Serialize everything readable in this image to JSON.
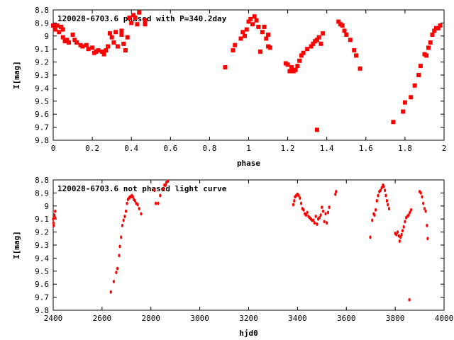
{
  "chart_data": [
    {
      "type": "scatter",
      "title": "120028-6703.6 phased with P=340.2day",
      "xlabel": "phase",
      "ylabel": "I[mag]",
      "xlim": [
        0,
        2
      ],
      "ylim": [
        8.8,
        9.8
      ],
      "y_inverted": true,
      "xticks": [
        "0",
        "0.2",
        "0.4",
        "0.6",
        "0.8",
        "1",
        "1.2",
        "1.4",
        "1.6",
        "1.8",
        "2"
      ],
      "yticks": [
        "8.8",
        "8.9",
        "9",
        "9.1",
        "9.2",
        "9.3",
        "9.4",
        "9.5",
        "9.6",
        "9.7",
        "9.8"
      ],
      "marker": "square",
      "color": "#ff0000",
      "points": [
        [
          0.0,
          8.92
        ],
        [
          0.01,
          8.95
        ],
        [
          0.02,
          8.92
        ],
        [
          0.03,
          8.97
        ],
        [
          0.04,
          8.93
        ],
        [
          0.05,
          9.01
        ],
        [
          0.06,
          9.04
        ],
        [
          0.05,
          8.95
        ],
        [
          0.07,
          9.03
        ],
        [
          0.08,
          9.05
        ],
        [
          0.1,
          8.99
        ],
        [
          0.11,
          9.03
        ],
        [
          0.12,
          9.05
        ],
        [
          0.14,
          9.07
        ],
        [
          0.15,
          9.08
        ],
        [
          0.17,
          9.07
        ],
        [
          0.18,
          9.1
        ],
        [
          0.2,
          9.09
        ],
        [
          0.21,
          9.13
        ],
        [
          0.22,
          9.12
        ],
        [
          0.23,
          9.11
        ],
        [
          0.25,
          9.12
        ],
        [
          0.26,
          9.14
        ],
        [
          0.27,
          9.11
        ],
        [
          0.28,
          9.08
        ],
        [
          0.29,
          8.98
        ],
        [
          0.3,
          9.01
        ],
        [
          0.31,
          9.05
        ],
        [
          0.32,
          8.97
        ],
        [
          0.33,
          9.08
        ],
        [
          0.35,
          8.96
        ],
        [
          0.35,
          8.99
        ],
        [
          0.36,
          9.06
        ],
        [
          0.37,
          9.11
        ],
        [
          0.38,
          9.01
        ],
        [
          0.39,
          8.86
        ],
        [
          0.4,
          8.9
        ],
        [
          0.41,
          8.84
        ],
        [
          0.42,
          8.86
        ],
        [
          0.43,
          8.91
        ],
        [
          0.44,
          8.82
        ],
        [
          0.47,
          8.88
        ],
        [
          0.47,
          8.91
        ],
        [
          0.88,
          9.24
        ],
        [
          0.92,
          9.11
        ],
        [
          0.93,
          9.07
        ],
        [
          0.96,
          9.02
        ],
        [
          0.97,
          8.97
        ],
        [
          0.98,
          9.0
        ],
        [
          0.99,
          8.95
        ],
        [
          1.0,
          8.89
        ],
        [
          1.01,
          8.87
        ],
        [
          1.02,
          8.91
        ],
        [
          1.03,
          8.85
        ],
        [
          1.04,
          8.88
        ],
        [
          1.05,
          8.93
        ],
        [
          1.06,
          9.12
        ],
        [
          1.07,
          8.97
        ],
        [
          1.08,
          8.93
        ],
        [
          1.09,
          9.02
        ],
        [
          1.1,
          9.08
        ],
        [
          1.1,
          8.99
        ],
        [
          1.11,
          9.09
        ],
        [
          1.19,
          9.21
        ],
        [
          1.2,
          9.22
        ],
        [
          1.21,
          9.27
        ],
        [
          1.22,
          9.24
        ],
        [
          1.23,
          9.27
        ],
        [
          1.24,
          9.26
        ],
        [
          1.25,
          9.23
        ],
        [
          1.26,
          9.19
        ],
        [
          1.27,
          9.15
        ],
        [
          1.28,
          9.13
        ],
        [
          1.3,
          9.1
        ],
        [
          1.32,
          9.08
        ],
        [
          1.33,
          9.06
        ],
        [
          1.34,
          9.04
        ],
        [
          1.35,
          9.03
        ],
        [
          1.36,
          9.01
        ],
        [
          1.37,
          9.06
        ],
        [
          1.38,
          8.98
        ],
        [
          1.35,
          9.72
        ],
        [
          1.46,
          8.89
        ],
        [
          1.47,
          8.91
        ],
        [
          1.48,
          8.92
        ],
        [
          1.49,
          8.96
        ],
        [
          1.5,
          8.99
        ],
        [
          1.52,
          9.03
        ],
        [
          1.54,
          9.11
        ],
        [
          1.55,
          9.15
        ],
        [
          1.57,
          9.25
        ],
        [
          1.74,
          9.66
        ],
        [
          1.79,
          9.58
        ],
        [
          1.8,
          9.51
        ],
        [
          1.83,
          9.47
        ],
        [
          1.85,
          9.38
        ],
        [
          1.87,
          9.3
        ],
        [
          1.88,
          9.23
        ],
        [
          1.9,
          9.14
        ],
        [
          1.91,
          9.15
        ],
        [
          1.92,
          9.09
        ],
        [
          1.93,
          9.05
        ],
        [
          1.94,
          8.99
        ],
        [
          1.95,
          8.96
        ],
        [
          1.96,
          8.94
        ],
        [
          1.97,
          8.94
        ],
        [
          1.98,
          8.92
        ]
      ]
    },
    {
      "type": "scatter",
      "title": "120028-6703.6 not phased light curve",
      "xlabel": "hjd0",
      "ylabel": "I[mag]",
      "xlim": [
        2400,
        4000
      ],
      "ylim": [
        8.8,
        9.8
      ],
      "y_inverted": true,
      "xticks": [
        "2400",
        "2600",
        "2800",
        "3000",
        "3200",
        "3400",
        "3600",
        "3800",
        "4000"
      ],
      "yticks": [
        "8.8",
        "8.9",
        "9",
        "9.1",
        "9.2",
        "9.3",
        "9.4",
        "9.5",
        "9.6",
        "9.7",
        "9.8"
      ],
      "marker": "dot",
      "color": "#ff0000",
      "points": [
        [
          2400,
          9.1
        ],
        [
          2401,
          9.13
        ],
        [
          2402,
          9.15
        ],
        [
          2405,
          9.07
        ],
        [
          2408,
          9.04
        ],
        [
          2408,
          9.09
        ],
        [
          2636,
          9.66
        ],
        [
          2648,
          9.58
        ],
        [
          2658,
          9.51
        ],
        [
          2663,
          9.48
        ],
        [
          2670,
          9.38
        ],
        [
          2673,
          9.31
        ],
        [
          2678,
          9.24
        ],
        [
          2683,
          9.15
        ],
        [
          2688,
          9.11
        ],
        [
          2693,
          9.08
        ],
        [
          2698,
          9.04
        ],
        [
          2702,
          8.98
        ],
        [
          2706,
          8.95
        ],
        [
          2710,
          8.94
        ],
        [
          2714,
          8.93
        ],
        [
          2718,
          8.93
        ],
        [
          2722,
          8.92
        ],
        [
          2726,
          8.93
        ],
        [
          2730,
          8.95
        ],
        [
          2735,
          8.96
        ],
        [
          2740,
          8.98
        ],
        [
          2746,
          8.99
        ],
        [
          2752,
          9.02
        ],
        [
          2760,
          9.06
        ],
        [
          2815,
          8.88
        ],
        [
          2820,
          8.98
        ],
        [
          2830,
          8.98
        ],
        [
          2838,
          8.92
        ],
        [
          2850,
          8.87
        ],
        [
          2855,
          8.84
        ],
        [
          2860,
          8.84
        ],
        [
          2863,
          8.82
        ],
        [
          2870,
          8.81
        ],
        [
          3383,
          8.99
        ],
        [
          3387,
          8.96
        ],
        [
          3390,
          8.93
        ],
        [
          3395,
          8.92
        ],
        [
          3400,
          8.91
        ],
        [
          3405,
          8.92
        ],
        [
          3410,
          8.94
        ],
        [
          3415,
          8.98
        ],
        [
          3420,
          9.02
        ],
        [
          3425,
          9.03
        ],
        [
          3430,
          9.06
        ],
        [
          3435,
          9.07
        ],
        [
          3440,
          9.05
        ],
        [
          3445,
          9.08
        ],
        [
          3450,
          9.09
        ],
        [
          3455,
          9.1
        ],
        [
          3460,
          9.11
        ],
        [
          3465,
          9.11
        ],
        [
          3470,
          9.13
        ],
        [
          3475,
          9.08
        ],
        [
          3480,
          9.14
        ],
        [
          3485,
          9.1
        ],
        [
          3490,
          9.09
        ],
        [
          3495,
          9.07
        ],
        [
          3500,
          9.01
        ],
        [
          3505,
          9.04
        ],
        [
          3510,
          9.12
        ],
        [
          3515,
          9.06
        ],
        [
          3520,
          9.13
        ],
        [
          3525,
          9.05
        ],
        [
          3530,
          9.01
        ],
        [
          3555,
          8.91
        ],
        [
          3558,
          8.89
        ],
        [
          3698,
          9.24
        ],
        [
          3706,
          9.11
        ],
        [
          3712,
          9.06
        ],
        [
          3715,
          9.07
        ],
        [
          3720,
          9.03
        ],
        [
          3725,
          8.96
        ],
        [
          3730,
          8.92
        ],
        [
          3735,
          8.89
        ],
        [
          3740,
          8.88
        ],
        [
          3745,
          8.86
        ],
        [
          3750,
          8.84
        ],
        [
          3753,
          8.85
        ],
        [
          3758,
          8.88
        ],
        [
          3762,
          8.92
        ],
        [
          3766,
          8.96
        ],
        [
          3770,
          8.99
        ],
        [
          3775,
          9.02
        ],
        [
          3800,
          9.21
        ],
        [
          3805,
          9.22
        ],
        [
          3810,
          9.2
        ],
        [
          3815,
          9.23
        ],
        [
          3818,
          9.27
        ],
        [
          3822,
          9.24
        ],
        [
          3826,
          9.22
        ],
        [
          3830,
          9.19
        ],
        [
          3835,
          9.16
        ],
        [
          3840,
          9.12
        ],
        [
          3845,
          9.09
        ],
        [
          3850,
          9.08
        ],
        [
          3855,
          9.07
        ],
        [
          3860,
          9.05
        ],
        [
          3865,
          9.03
        ],
        [
          3858,
          9.72
        ],
        [
          3900,
          8.89
        ],
        [
          3905,
          8.9
        ],
        [
          3910,
          8.93
        ],
        [
          3915,
          8.98
        ],
        [
          3920,
          9.02
        ],
        [
          3925,
          9.04
        ],
        [
          3930,
          9.15
        ],
        [
          3933,
          9.25
        ]
      ]
    }
  ]
}
